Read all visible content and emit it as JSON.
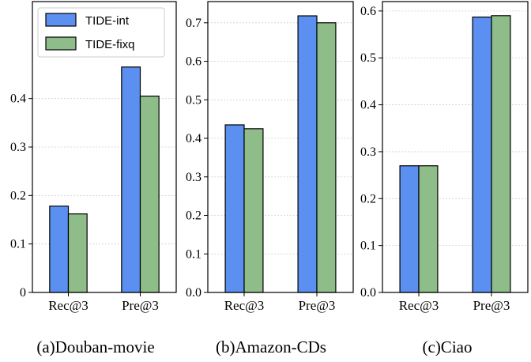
{
  "colors": {
    "series1": "#5b8ff0",
    "series2": "#8fbd8a"
  },
  "legend": {
    "placement": "top-left of first panel",
    "labels": [
      "TIDE-int",
      "TIDE-fixq"
    ]
  },
  "chart_data": [
    {
      "type": "bar",
      "title": "(a)Douban-movie",
      "categories": [
        "Rec@3",
        "Pre@3"
      ],
      "series": [
        {
          "name": "TIDE-int",
          "values": [
            0.178,
            0.465
          ]
        },
        {
          "name": "TIDE-fixq",
          "values": [
            0.162,
            0.405
          ]
        }
      ],
      "ylim": [
        0,
        0.6
      ],
      "yticks": [
        0,
        0.1,
        0.2,
        0.3,
        0.4
      ],
      "ytick_labels": [
        "0",
        "0.1",
        "0.2",
        "0.3",
        "0.4"
      ],
      "grid": true
    },
    {
      "type": "bar",
      "title": "(b)Amazon-CDs",
      "categories": [
        "Rec@3",
        "Pre@3"
      ],
      "series": [
        {
          "name": "TIDE-int",
          "values": [
            0.435,
            0.718
          ]
        },
        {
          "name": "TIDE-fixq",
          "values": [
            0.425,
            0.7
          ]
        }
      ],
      "ylim": [
        0,
        0.755
      ],
      "yticks": [
        0,
        0.1,
        0.2,
        0.3,
        0.4,
        0.5,
        0.6,
        0.7
      ],
      "ytick_labels": [
        "0.0",
        "0.1",
        "0.2",
        "0.3",
        "0.4",
        "0.5",
        "0.6",
        "0.7"
      ],
      "grid": true
    },
    {
      "type": "bar",
      "title": "(c)Ciao",
      "categories": [
        "Rec@3",
        "Pre@3"
      ],
      "series": [
        {
          "name": "TIDE-int",
          "values": [
            0.27,
            0.587
          ]
        },
        {
          "name": "TIDE-fixq",
          "values": [
            0.27,
            0.59
          ]
        }
      ],
      "ylim": [
        0,
        0.62
      ],
      "yticks": [
        0,
        0.1,
        0.2,
        0.3,
        0.4,
        0.5,
        0.6
      ],
      "ytick_labels": [
        "0.0",
        "0.1",
        "0.2",
        "0.3",
        "0.4",
        "0.5",
        "0.6"
      ],
      "grid": true
    }
  ]
}
